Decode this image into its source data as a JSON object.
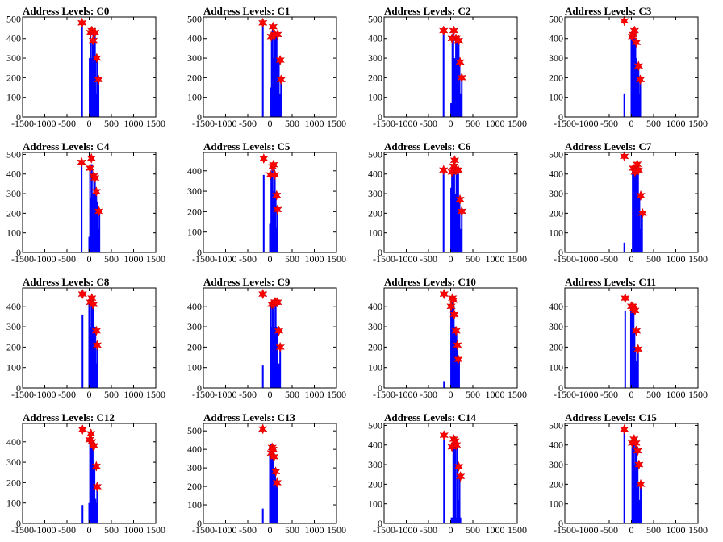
{
  "chart_data": [
    {
      "type": "bar",
      "title": "Address Levels: C0",
      "xlim": [
        -1500,
        1500
      ],
      "ylim": [
        0,
        510
      ],
      "xticks": [
        -1500,
        -1000,
        -500,
        0,
        500,
        1000,
        1500
      ],
      "yticks": [
        0,
        100,
        200,
        300,
        400,
        500
      ],
      "grid": false,
      "colors": {
        "bars": "#0000ff",
        "markers": "#ff0000"
      },
      "bars": {
        "x": [
          -160,
          10,
          30,
          50,
          70,
          90,
          110,
          130,
          150,
          170,
          190,
          210
        ],
        "values": [
          480,
          300,
          430,
          300,
          400,
          430,
          300,
          420,
          300,
          120,
          300,
          190
        ]
      },
      "peaks": {
        "x": [
          -160,
          30,
          60,
          90,
          130,
          170,
          210
        ],
        "values": [
          480,
          430,
          440,
          390,
          430,
          300,
          190
        ]
      }
    },
    {
      "type": "bar",
      "title": "Address Levels: C1",
      "xlim": [
        -1500,
        1500
      ],
      "ylim": [
        0,
        510
      ],
      "xticks": [
        -1500,
        -1000,
        -500,
        0,
        500,
        1000,
        1500
      ],
      "yticks": [
        0,
        100,
        200,
        300,
        400,
        500
      ],
      "grid": false,
      "colors": {
        "bars": "#0000ff",
        "markers": "#ff0000"
      },
      "bars": {
        "x": [
          -160,
          20,
          40,
          60,
          80,
          100,
          120,
          150,
          170,
          200,
          230,
          250
        ],
        "values": [
          480,
          150,
          410,
          450,
          300,
          420,
          420,
          420,
          300,
          280,
          120,
          190
        ]
      },
      "peaks": {
        "x": [
          -160,
          30,
          70,
          110,
          170,
          230,
          250
        ],
        "values": [
          480,
          410,
          460,
          420,
          420,
          290,
          190
        ]
      }
    },
    {
      "type": "bar",
      "title": "Address Levels: C2",
      "xlim": [
        -1500,
        1500
      ],
      "ylim": [
        0,
        510
      ],
      "xticks": [
        -1500,
        -1000,
        -500,
        0,
        500,
        1000,
        1500
      ],
      "yticks": [
        0,
        100,
        200,
        300,
        400,
        500
      ],
      "grid": false,
      "colors": {
        "bars": "#0000ff",
        "markers": "#ff0000"
      },
      "bars": {
        "x": [
          -160,
          10,
          40,
          60,
          90,
          120,
          150,
          180,
          200,
          230,
          250
        ],
        "values": [
          440,
          70,
          400,
          440,
          300,
          400,
          390,
          390,
          280,
          120,
          200
        ]
      },
      "peaks": {
        "x": [
          -160,
          30,
          70,
          120,
          180,
          210,
          250
        ],
        "values": [
          440,
          400,
          440,
          400,
          390,
          280,
          200
        ]
      }
    },
    {
      "type": "bar",
      "title": "Address Levels: C3",
      "xlim": [
        -1500,
        1500
      ],
      "ylim": [
        0,
        510
      ],
      "xticks": [
        -1500,
        -1000,
        -500,
        0,
        500,
        1000,
        1500
      ],
      "yticks": [
        0,
        100,
        200,
        300,
        400,
        500
      ],
      "grid": false,
      "colors": {
        "bars": "#0000ff",
        "markers": "#ff0000"
      },
      "bars": {
        "x": [
          -160,
          0,
          30,
          50,
          70,
          90,
          110,
          130,
          160,
          180,
          200
        ],
        "values": [
          120,
          410,
          420,
          400,
          430,
          380,
          300,
          260,
          260,
          120,
          190
        ]
      },
      "peaks": {
        "x": [
          -160,
          20,
          40,
          70,
          110,
          160,
          200
        ],
        "values": [
          490,
          410,
          420,
          440,
          380,
          260,
          190
        ]
      }
    },
    {
      "type": "bar",
      "title": "Address Levels: C4",
      "xlim": [
        -1500,
        1500
      ],
      "ylim": [
        0,
        510
      ],
      "xticks": [
        -1500,
        -1000,
        -500,
        0,
        500,
        1000,
        1500
      ],
      "yticks": [
        0,
        100,
        200,
        300,
        400,
        500
      ],
      "grid": false,
      "colors": {
        "bars": "#0000ff",
        "markers": "#ff0000"
      },
      "bars": {
        "x": [
          -170,
          0,
          20,
          40,
          60,
          80,
          110,
          130,
          160,
          180,
          200,
          230
        ],
        "values": [
          460,
          80,
          420,
          280,
          450,
          300,
          380,
          370,
          300,
          260,
          120,
          210
        ]
      },
      "peaks": {
        "x": [
          -170,
          20,
          50,
          100,
          130,
          160,
          220
        ],
        "values": [
          460,
          430,
          480,
          390,
          380,
          310,
          210
        ]
      }
    },
    {
      "type": "bar",
      "title": "Address Levels: C5",
      "xlim": [
        -1500,
        1500
      ],
      "ylim": [
        0,
        490
      ],
      "xticks": [
        -1500,
        -1000,
        -500,
        0,
        500,
        1000,
        1500
      ],
      "yticks": [
        0,
        100,
        200,
        300,
        400
      ],
      "grid": false,
      "colors": {
        "bars": "#0000ff",
        "markers": "#ff0000"
      },
      "bars": {
        "x": [
          -140,
          0,
          30,
          50,
          70,
          90,
          110,
          130,
          150,
          170
        ],
        "values": [
          380,
          140,
          380,
          410,
          300,
          430,
          380,
          280,
          120,
          210
        ]
      },
      "peaks": {
        "x": [
          -140,
          10,
          60,
          80,
          110,
          150,
          170
        ],
        "values": [
          460,
          380,
          420,
          430,
          380,
          280,
          210
        ]
      }
    },
    {
      "type": "bar",
      "title": "Address Levels: C6",
      "xlim": [
        -1500,
        1500
      ],
      "ylim": [
        0,
        510
      ],
      "xticks": [
        -1500,
        -1000,
        -500,
        0,
        500,
        1000,
        1500
      ],
      "yticks": [
        0,
        100,
        200,
        300,
        400,
        500
      ],
      "grid": false,
      "colors": {
        "bars": "#0000ff",
        "markers": "#ff0000"
      },
      "bars": {
        "x": [
          -160,
          10,
          30,
          50,
          80,
          110,
          130,
          150,
          170,
          200,
          220,
          250
        ],
        "values": [
          420,
          330,
          410,
          440,
          470,
          300,
          420,
          400,
          420,
          270,
          120,
          210
        ]
      },
      "peaks": {
        "x": [
          -160,
          30,
          70,
          90,
          130,
          170,
          210,
          250
        ],
        "values": [
          420,
          410,
          440,
          470,
          420,
          420,
          270,
          210
        ]
      }
    },
    {
      "type": "bar",
      "title": "Address Levels: C7",
      "xlim": [
        -1500,
        1500
      ],
      "ylim": [
        0,
        510
      ],
      "xticks": [
        -1500,
        -1000,
        -500,
        0,
        500,
        1000,
        1500
      ],
      "yticks": [
        0,
        100,
        200,
        300,
        400,
        500
      ],
      "grid": false,
      "colors": {
        "bars": "#0000ff",
        "markers": "#ff0000"
      },
      "bars": {
        "x": [
          -160,
          30,
          50,
          70,
          90,
          110,
          130,
          150,
          180,
          200,
          220,
          240
        ],
        "values": [
          50,
          430,
          420,
          410,
          420,
          450,
          430,
          420,
          290,
          120,
          200,
          200
        ]
      },
      "peaks": {
        "x": [
          -160,
          40,
          80,
          110,
          130,
          160,
          210,
          250
        ],
        "values": [
          490,
          430,
          410,
          420,
          450,
          420,
          290,
          200
        ]
      }
    },
    {
      "type": "bar",
      "title": "Address Levels: C8",
      "xlim": [
        -1500,
        1500
      ],
      "ylim": [
        0,
        490
      ],
      "xticks": [
        -1500,
        -1000,
        -500,
        0,
        500,
        1000,
        1500
      ],
      "yticks": [
        0,
        100,
        200,
        300,
        400
      ],
      "grid": false,
      "colors": {
        "bars": "#0000ff",
        "markers": "#ff0000"
      },
      "bars": {
        "x": [
          -150,
          0,
          20,
          40,
          60,
          80,
          100,
          120,
          140,
          160,
          180
        ],
        "values": [
          360,
          410,
          430,
          300,
          410,
          410,
          390,
          300,
          280,
          120,
          200
        ]
      },
      "peaks": {
        "x": [
          -150,
          30,
          60,
          80,
          100,
          160,
          180
        ],
        "values": [
          460,
          420,
          440,
          410,
          410,
          280,
          210
        ]
      }
    },
    {
      "type": "bar",
      "title": "Address Levels: C9",
      "xlim": [
        -1500,
        1500
      ],
      "ylim": [
        0,
        490
      ],
      "xticks": [
        -1500,
        -1000,
        -500,
        0,
        500,
        1000,
        1500
      ],
      "yticks": [
        0,
        100,
        200,
        300,
        400
      ],
      "grid": false,
      "colors": {
        "bars": "#0000ff",
        "markers": "#ff0000"
      },
      "bars": {
        "x": [
          -160,
          10,
          30,
          50,
          70,
          90,
          110,
          130,
          150,
          170,
          200,
          230
        ],
        "values": [
          110,
          410,
          300,
          410,
          410,
          420,
          300,
          420,
          300,
          280,
          120,
          200
        ]
      },
      "peaks": {
        "x": [
          -160,
          40,
          80,
          110,
          130,
          170,
          200,
          230
        ],
        "values": [
          460,
          410,
          410,
          420,
          420,
          420,
          280,
          200
        ]
      }
    },
    {
      "type": "bar",
      "title": "Address Levels: C10",
      "xlim": [
        -1500,
        1500
      ],
      "ylim": [
        0,
        490
      ],
      "xticks": [
        -1500,
        -1000,
        -500,
        0,
        500,
        1000,
        1500
      ],
      "yticks": [
        0,
        100,
        200,
        300,
        400
      ],
      "grid": false,
      "colors": {
        "bars": "#0000ff",
        "markers": "#ff0000"
      },
      "bars": {
        "x": [
          -150,
          10,
          30,
          50,
          70,
          90,
          110,
          130,
          150,
          170,
          190
        ],
        "values": [
          30,
          400,
          420,
          360,
          400,
          300,
          280,
          270,
          200,
          120,
          140
        ]
      },
      "peaks": {
        "x": [
          -150,
          10,
          40,
          60,
          80,
          120,
          150,
          170
        ],
        "values": [
          460,
          400,
          440,
          430,
          360,
          280,
          210,
          140
        ]
      }
    },
    {
      "type": "bar",
      "title": "Address Levels: C11",
      "xlim": [
        -1500,
        1500
      ],
      "ylim": [
        0,
        490
      ],
      "xticks": [
        -1500,
        -1000,
        -500,
        0,
        500,
        1000,
        1500
      ],
      "yticks": [
        0,
        100,
        200,
        300,
        400
      ],
      "grid": false,
      "colors": {
        "bars": "#0000ff",
        "markers": "#ff0000"
      },
      "bars": {
        "x": [
          -140,
          -10,
          10,
          30,
          50,
          70,
          90,
          110,
          130,
          150
        ],
        "values": [
          380,
          400,
          400,
          390,
          380,
          280,
          200,
          130,
          110,
          190
        ]
      },
      "peaks": {
        "x": [
          -140,
          0,
          30,
          50,
          80,
          110,
          150
        ],
        "values": [
          440,
          400,
          400,
          390,
          380,
          280,
          190
        ]
      }
    },
    {
      "type": "bar",
      "title": "Address Levels: C12",
      "xlim": [
        -1500,
        1500
      ],
      "ylim": [
        0,
        490
      ],
      "xticks": [
        -1500,
        -1000,
        -500,
        0,
        500,
        1000,
        1500
      ],
      "yticks": [
        0,
        100,
        200,
        300,
        400
      ],
      "grid": false,
      "colors": {
        "bars": "#0000ff",
        "markers": "#ff0000"
      },
      "bars": {
        "x": [
          -150,
          0,
          20,
          40,
          60,
          80,
          100,
          120,
          140,
          160,
          180
        ],
        "values": [
          90,
          100,
          410,
          400,
          370,
          380,
          300,
          280,
          120,
          100,
          180
        ]
      },
      "peaks": {
        "x": [
          -150,
          10,
          40,
          60,
          90,
          110,
          160,
          180
        ],
        "values": [
          460,
          410,
          440,
          400,
          380,
          380,
          280,
          180
        ]
      }
    },
    {
      "type": "bar",
      "title": "Address Levels: C13",
      "xlim": [
        -1500,
        1500
      ],
      "ylim": [
        0,
        540
      ],
      "xticks": [
        -1500,
        -1000,
        -500,
        0,
        500,
        1000,
        1500
      ],
      "yticks": [
        0,
        100,
        200,
        300,
        400,
        500
      ],
      "grid": false,
      "colors": {
        "bars": "#0000ff",
        "markers": "#ff0000"
      },
      "bars": {
        "x": [
          -160,
          0,
          20,
          40,
          60,
          80,
          100,
          120,
          140,
          160
        ],
        "values": [
          80,
          400,
          430,
          430,
          410,
          380,
          300,
          280,
          200,
          220
        ]
      },
      "peaks": {
        "x": [
          -160,
          30,
          50,
          70,
          90,
          130,
          160
        ],
        "values": [
          510,
          380,
          410,
          400,
          360,
          280,
          220
        ]
      }
    },
    {
      "type": "bar",
      "title": "Address Levels: C14",
      "xlim": [
        -1500,
        1500
      ],
      "ylim": [
        0,
        510
      ],
      "xticks": [
        -1500,
        -1000,
        -500,
        0,
        500,
        1000,
        1500
      ],
      "yticks": [
        0,
        100,
        200,
        300,
        400,
        500
      ],
      "grid": false,
      "colors": {
        "bars": "#0000ff",
        "markers": "#ff0000"
      },
      "bars": {
        "x": [
          -150,
          20,
          40,
          60,
          80,
          100,
          120,
          140,
          160,
          180,
          200,
          220
        ],
        "values": [
          430,
          30,
          30,
          420,
          380,
          430,
          30,
          400,
          300,
          120,
          240,
          30
        ]
      },
      "peaks": {
        "x": [
          -150,
          30,
          70,
          100,
          130,
          180,
          220
        ],
        "values": [
          450,
          390,
          430,
          420,
          400,
          290,
          240
        ]
      }
    },
    {
      "type": "bar",
      "title": "Address Levels: C15",
      "xlim": [
        -1500,
        1500
      ],
      "ylim": [
        0,
        510
      ],
      "xticks": [
        -1500,
        -1000,
        -500,
        0,
        500,
        1000,
        1500
      ],
      "yticks": [
        0,
        100,
        200,
        300,
        400,
        500
      ],
      "grid": false,
      "colors": {
        "bars": "#0000ff",
        "markers": "#ff0000"
      },
      "bars": {
        "x": [
          -160,
          20,
          40,
          60,
          80,
          100,
          120,
          140,
          160,
          180,
          210
        ],
        "values": [
          470,
          390,
          430,
          420,
          300,
          430,
          380,
          300,
          200,
          120,
          200
        ]
      },
      "peaks": {
        "x": [
          -160,
          20,
          60,
          100,
          140,
          170,
          210
        ],
        "values": [
          480,
          410,
          430,
          410,
          370,
          300,
          200
        ]
      }
    }
  ]
}
